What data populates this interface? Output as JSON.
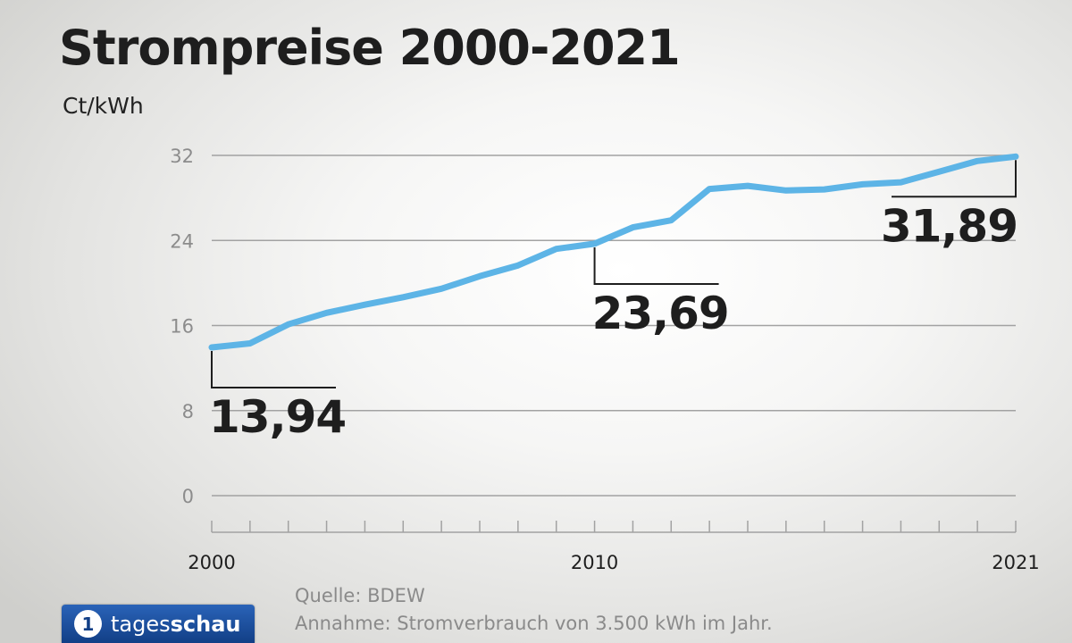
{
  "chart_data": {
    "type": "line",
    "title": "Strompreise 2000-2021",
    "unit_label": "Ct/kWh",
    "x": [
      2000,
      2001,
      2002,
      2003,
      2004,
      2005,
      2006,
      2007,
      2008,
      2009,
      2010,
      2011,
      2012,
      2013,
      2014,
      2015,
      2016,
      2017,
      2018,
      2019,
      2020,
      2021
    ],
    "series": [
      {
        "name": "",
        "color": "#5db4e6",
        "values": [
          13.94,
          14.32,
          16.11,
          17.19,
          17.96,
          18.66,
          19.46,
          20.64,
          21.65,
          23.21,
          23.69,
          25.23,
          25.89,
          28.84,
          29.14,
          28.7,
          28.8,
          29.28,
          29.47,
          30.46,
          31.47,
          31.89
        ]
      }
    ],
    "ylim": [
      0,
      32
    ],
    "yticks": [
      0,
      8,
      16,
      24,
      32
    ],
    "xtick_labels": [
      2000,
      2010,
      2021
    ],
    "grid": true,
    "annotations": [
      {
        "x": 2000,
        "text": "13,94"
      },
      {
        "x": 2010,
        "text": "23,69"
      },
      {
        "x": 2021,
        "text": "31,89"
      }
    ]
  },
  "source": {
    "line1": "Quelle: BDEW",
    "line2": "Annahme: Stromverbrauch von 3.500 kWh im Jahr."
  },
  "logo": {
    "mark": "1",
    "text_light": "tages",
    "text_bold": "schau"
  }
}
